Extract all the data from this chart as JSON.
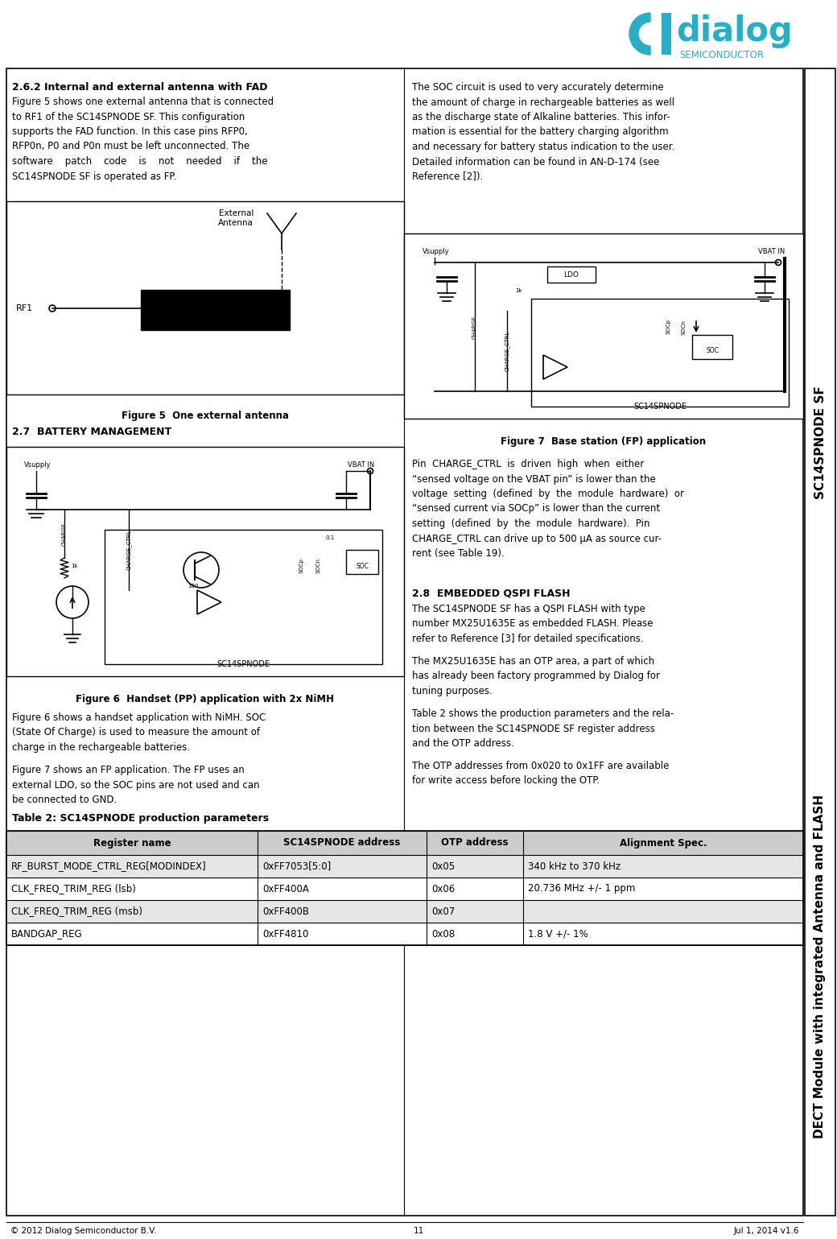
{
  "page_width": 10.4,
  "page_height": 15.39,
  "bg_color": "#ffffff",
  "border_color": "#000000",
  "teal_color": "#29aec7",
  "section_261_title": "2.6.2 Internal and external antenna with FAD",
  "section_261_text": "Figure 5 shows one external antenna that is connected\nto RF1 of the SC14SPNODE SF. This configuration\nsupports the FAD function. In this case pins RFP0,\nRFP0n, P0 and P0n must be left unconnected. The\nsoftware    patch    code    is    not    needed    if    the\nSC14SPNODE SF is operated as FP.",
  "section_27_title": "2.7  BATTERY MANAGEMENT",
  "section_27_text1": "Figure 6 shows a handset application with NiMH. SOC\n(State Of Charge) is used to measure the amount of\ncharge in the rechargeable batteries.",
  "section_27_text2": "Figure 7 shows an FP application. The FP uses an\nexternal LDO, so the SOC pins are not used and can\nbe connected to GND.",
  "section_28_title": "2.8  EMBEDDED QSPI FLASH",
  "section_28_text1": "The SC14SPNODE SF has a QSPI FLASH with type\nnumber MX25U1635E as embedded FLASH. Please\nrefer to Reference [3] for detailed specifications.",
  "section_28_text2": "The MX25U1635E has an OTP area, a part of which\nhas already been factory programmed by Dialog for\ntuning purposes.",
  "section_28_text3": "Table 2 shows the production parameters and the rela-\ntion between the SC14SPNODE SF register address\nand the OTP address.",
  "section_28_text4": "The OTP addresses from 0x020 to 0x1FF are available\nfor write access before locking the OTP.",
  "right_col_top_text": "The SOC circuit is used to very accurately determine\nthe amount of charge in rechargeable batteries as well\nas the discharge state of Alkaline batteries. This infor-\nmation is essential for the battery charging algorithm\nand necessary for battery status indication to the user.\nDetailed information can be found in AN-D-174 (see\nReference [2]).",
  "right_col_charge_text": "Pin  CHARGE_CTRL  is  driven  high  when  either\n“sensed voltage on the VBAT pin” is lower than the\nvoltage  setting  (defined  by  the  module  hardware)  or\n“sensed current via SOCp” is lower than the current\nsetting  (defined  by  the  module  hardware).  Pin\nCHARGE_CTRL can drive up to 500 μA as source cur-\nrent (see Table 19).",
  "fig5_caption": "Figure 5  One external antenna",
  "fig6_caption": "Figure 6  Handset (PP) application with 2x NiMH",
  "fig7_caption": "Figure 7  Base station (FP) application",
  "table_title": "Table 2: SC14SPNODE production parameters",
  "table_headers": [
    "Register name",
    "SC14SPNODE address",
    "OTP address",
    "Alignment Spec."
  ],
  "table_rows": [
    [
      "RF_BURST_MODE_CTRL_REG[MODINDEX]",
      "0xFF7053[5:0]",
      "0x05",
      "340 kHz to 370 kHz"
    ],
    [
      "CLK_FREQ_TRIM_REG (lsb)",
      "0xFF400A",
      "0x06",
      "20.736 MHz +/- 1 ppm"
    ],
    [
      "CLK_FREQ_TRIM_REG (msb)",
      "0xFF400B",
      "0x07",
      ""
    ],
    [
      "BANDGAP_REG",
      "0xFF4810",
      "0x08",
      "1.8 V +/- 1%"
    ]
  ],
  "footer_left": "© 2012 Dialog Semiconductor B.V.",
  "footer_center": "11",
  "footer_right": "Jul 1, 2014 v1.6"
}
